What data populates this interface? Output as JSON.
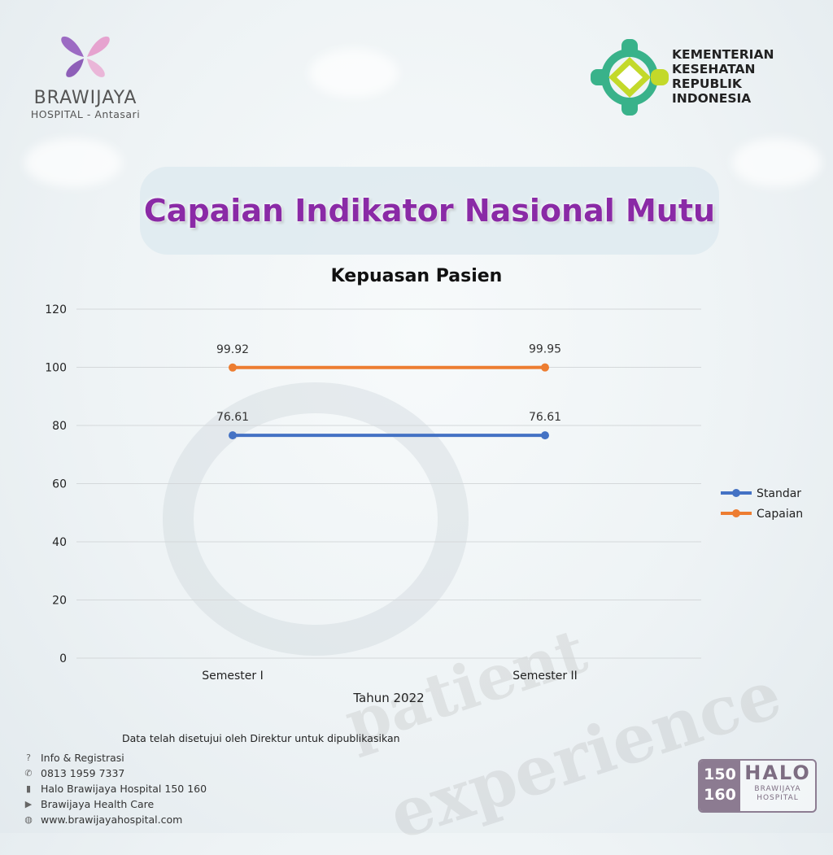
{
  "brand": {
    "left_name": "BRAWIJAYA",
    "left_sub": "HOSPITAL - Antasari",
    "right_lines": [
      "KEMENTERIAN",
      "KESEHATAN",
      "REPUBLIK",
      "INDONESIA"
    ]
  },
  "title": "Capaian Indikator Nasional Mutu",
  "background_words": [
    "patient",
    "experience"
  ],
  "chart_data": {
    "type": "line",
    "title": "Kepuasan Pasien",
    "xlabel": "Tahun 2022",
    "ylabel": "",
    "categories": [
      "Semester I",
      "Semester II"
    ],
    "series": [
      {
        "name": "Standar",
        "values": [
          76.61,
          76.61
        ],
        "labels": [
          "76.61",
          "76.61"
        ],
        "color": "#4472c4"
      },
      {
        "name": "Capaian",
        "values": [
          99.92,
          99.95
        ],
        "labels": [
          "99.92",
          "99.95"
        ],
        "color": "#ed7d31"
      }
    ],
    "ylim": [
      0,
      120
    ],
    "yticks": [
      0,
      20,
      40,
      60,
      80,
      100,
      120
    ],
    "grid": true,
    "legend_position": "right"
  },
  "approval_note": "Data telah disetujui oleh Direktur untuk dipublikasikan",
  "contacts": [
    {
      "icon": "question-icon",
      "text": "Info & Registrasi"
    },
    {
      "icon": "whatsapp-icon",
      "text": "0813 1959 7337"
    },
    {
      "icon": "phone-icon",
      "text": "Halo Brawijaya Hospital 150 160"
    },
    {
      "icon": "youtube-icon",
      "text": "Brawijaya Health Care"
    },
    {
      "icon": "globe-icon",
      "text": "www.brawijayahospital.com"
    }
  ],
  "badge": {
    "num_top": "150",
    "num_bottom": "160",
    "halo": "HALO",
    "line1": "BRAWIJAYA",
    "line2": "HOSPITAL"
  }
}
